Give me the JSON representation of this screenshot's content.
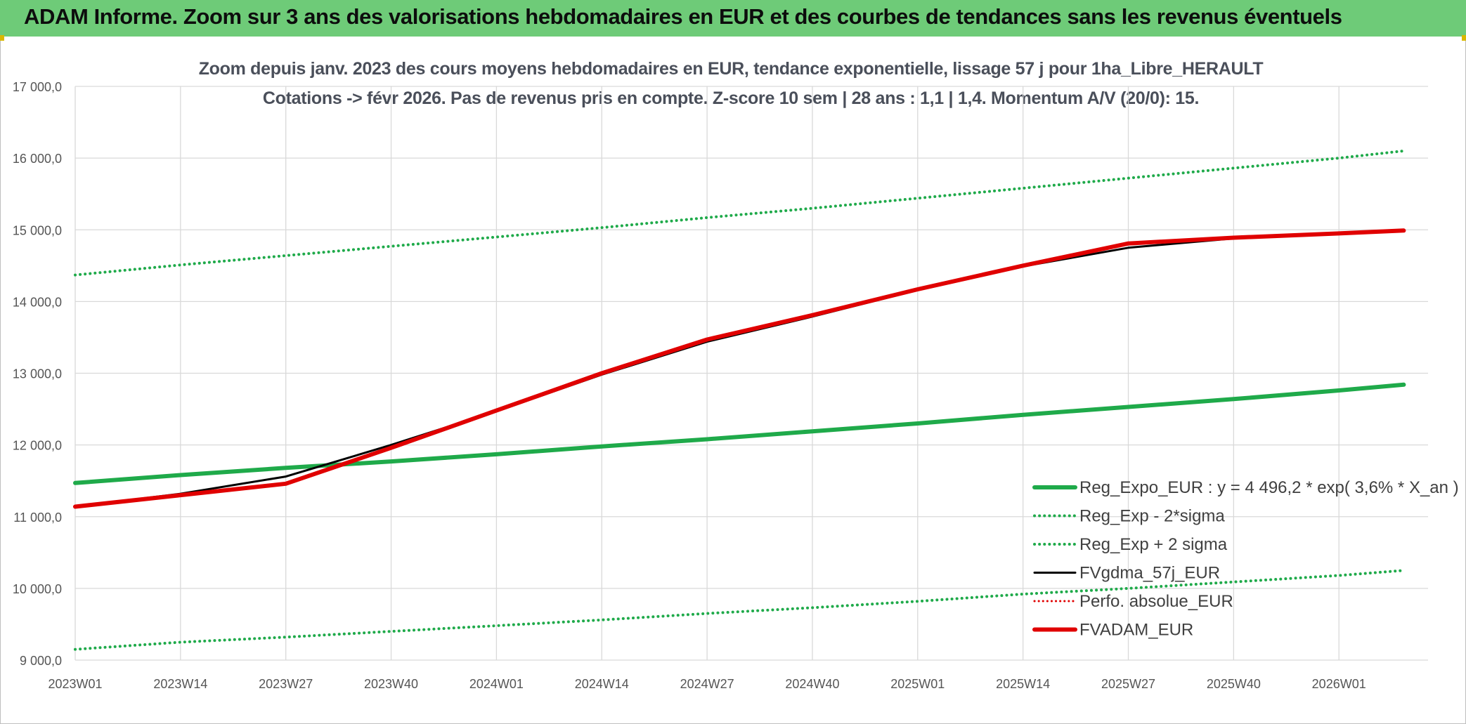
{
  "banner": {
    "title": "ADAM Informe. Zoom sur 3 ans des valorisations hebdomadaires en EUR et des courbes de tendances sans les revenus éventuels",
    "background": "#6ecb78"
  },
  "chart_data": {
    "type": "line",
    "title_line1": "Zoom depuis janv. 2023 des cours moyens hebdomadaires en EUR, tendance exponentielle, lissage 57 j pour 1ha_Libre_HERAULT",
    "title_line2": "Cotations -> févr 2026. Pas de revenus pris en compte. Z-score 10 sem | 28 ans : 1,1 | 1,4. Momentum A/V (20/0): 15.",
    "ylim": [
      9000,
      17000
    ],
    "yticks": [
      "9 000,0",
      "10 000,0",
      "11 000,0",
      "12 000,0",
      "13 000,0",
      "14 000,0",
      "15 000,0",
      "16 000,0",
      "17 000,0"
    ],
    "xticks": [
      "2023W01",
      "2023W14",
      "2023W27",
      "2023W40",
      "2024W01",
      "2024W14",
      "2024W27",
      "2024W40",
      "2025W01",
      "2025W14",
      "2025W27",
      "2025W40",
      "2026W01"
    ],
    "x_weeks": [
      0,
      13,
      26,
      39,
      52,
      65,
      78,
      91,
      104,
      117,
      130,
      143,
      156,
      164
    ],
    "grid": true,
    "legend_position": "right",
    "series": [
      {
        "name": "Reg_Expo_EUR : y = 4 496,2 * exp( 3,6% *  X_an )",
        "color": "#1faa4a",
        "style": "solid",
        "width": 6,
        "values": [
          11470,
          11580,
          11680,
          11770,
          11870,
          11980,
          12080,
          12190,
          12300,
          12420,
          12530,
          12640,
          12760,
          12840
        ]
      },
      {
        "name": "Reg_Exp - 2*sigma",
        "color": "#1faa4a",
        "style": "dotted",
        "width": 4,
        "values": [
          9150,
          9250,
          9320,
          9400,
          9480,
          9560,
          9650,
          9730,
          9820,
          9920,
          10000,
          10090,
          10180,
          10250
        ]
      },
      {
        "name": "Reg_Exp + 2 sigma",
        "color": "#1faa4a",
        "style": "dotted",
        "width": 4,
        "values": [
          14370,
          14510,
          14640,
          14770,
          14900,
          15030,
          15170,
          15300,
          15440,
          15580,
          15720,
          15860,
          16000,
          16100
        ]
      },
      {
        "name": "FVgdma_57j_EUR",
        "color": "#000000",
        "style": "solid",
        "width": 3,
        "values": [
          11140,
          11320,
          11560,
          12000,
          12470,
          12980,
          13440,
          13790,
          14160,
          14490,
          14750,
          14880,
          14950,
          14990
        ]
      },
      {
        "name": "Perfo. absolue_EUR",
        "color": "#e00000",
        "style": "dotted",
        "width": 3,
        "values": [
          11140,
          11300,
          11460,
          11960,
          12480,
          13000,
          13470,
          13810,
          14170,
          14500,
          14810,
          14890,
          14950,
          14990
        ]
      },
      {
        "name": "FVADAM_EUR",
        "color": "#e00000",
        "style": "solid",
        "width": 6,
        "values": [
          11140,
          11300,
          11460,
          11960,
          12480,
          13000,
          13470,
          13810,
          14170,
          14500,
          14810,
          14890,
          14950,
          14990
        ]
      }
    ]
  }
}
